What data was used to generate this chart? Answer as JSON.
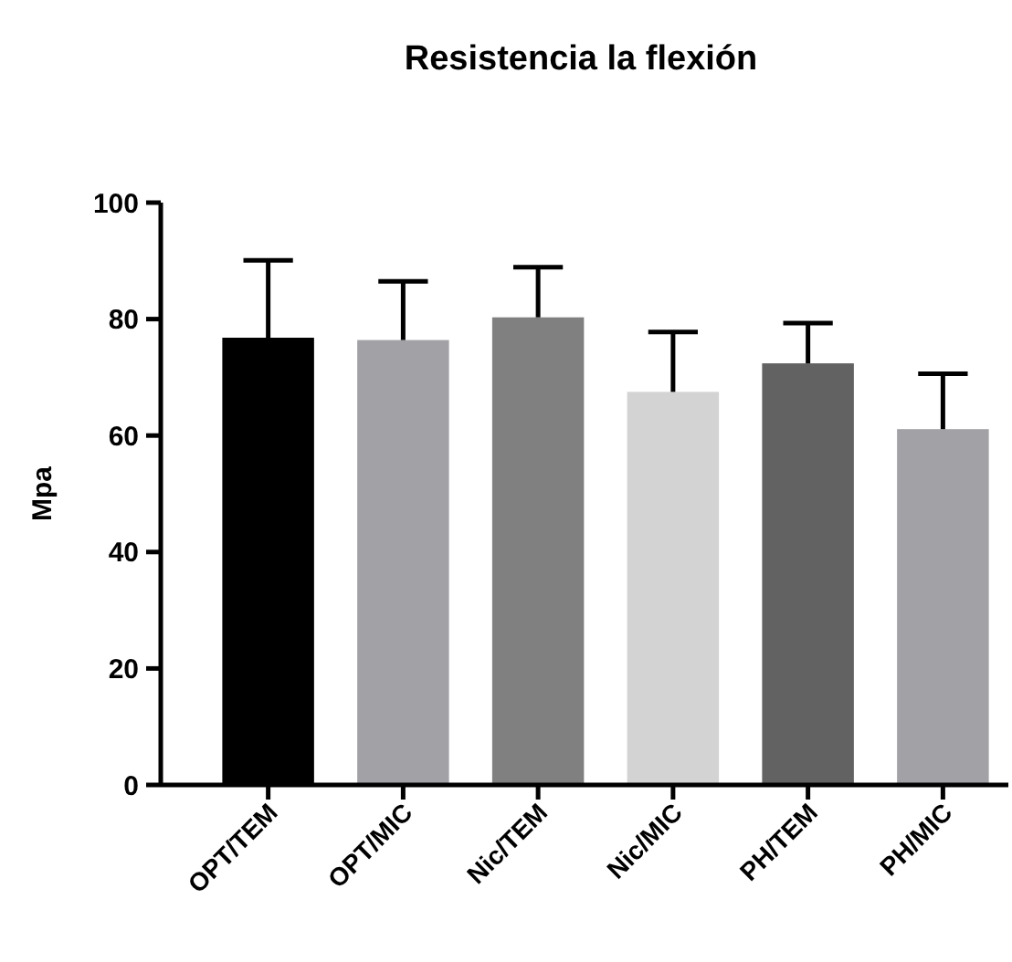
{
  "chart_data": {
    "type": "bar",
    "title": "Resistencia la flexión",
    "ylabel": "Mpa",
    "categories": [
      "OPT/TEM",
      "OPT/MIC",
      "Nic/TEM",
      "Nic/MIC",
      "PH/TEM",
      "PH/MIC"
    ],
    "values": [
      76.8,
      76.4,
      80.3,
      67.5,
      72.4,
      61.1
    ],
    "colors": [
      "#000000",
      "#a2a1a6",
      "#808080",
      "#d3d3d3",
      "#626262",
      "#a2a1a6"
    ],
    "errors": [
      [
        76.8,
        90.1
      ],
      [
        76.4,
        86.5
      ],
      [
        80.3,
        88.9
      ],
      [
        67.5,
        77.8
      ],
      [
        72.4,
        79.3
      ],
      [
        61.1,
        70.6
      ]
    ],
    "ylim": [
      0,
      100
    ],
    "yticks": [
      0,
      20,
      40,
      60,
      80,
      100
    ],
    "grid": false
  }
}
